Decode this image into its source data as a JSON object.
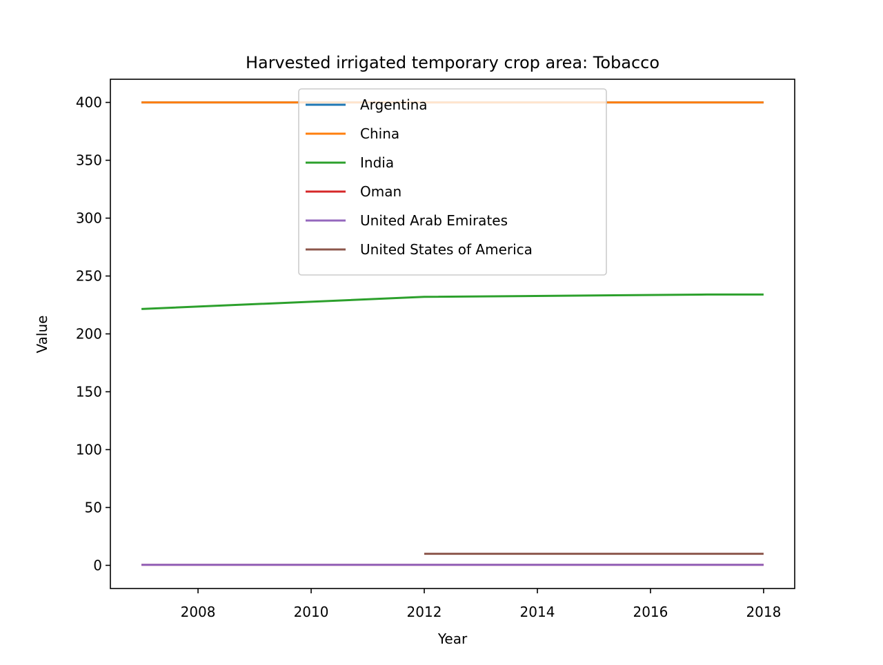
{
  "chart_data": {
    "type": "line",
    "title": "Harvested irrigated temporary crop area: Tobacco",
    "xlabel": "Year",
    "ylabel": "Value",
    "xlim": [
      2006.45,
      2018.55
    ],
    "ylim": [
      -20,
      420
    ],
    "xticks": [
      2008,
      2010,
      2012,
      2014,
      2016,
      2018
    ],
    "yticks": [
      0,
      50,
      100,
      150,
      200,
      250,
      300,
      350,
      400
    ],
    "grid": false,
    "legend_position": "upper center",
    "series": [
      {
        "name": "Argentina",
        "color": "#1f77b4",
        "x": [
          2007,
          2012,
          2017,
          2018
        ],
        "y": [
          400,
          400,
          400,
          400
        ]
      },
      {
        "name": "China",
        "color": "#ff7f0e",
        "x": [
          2007,
          2012,
          2017,
          2018
        ],
        "y": [
          400,
          400,
          400,
          400
        ]
      },
      {
        "name": "India",
        "color": "#2ca02c",
        "x": [
          2007,
          2012,
          2017,
          2018
        ],
        "y": [
          221.5,
          232,
          234,
          234
        ]
      },
      {
        "name": "Oman",
        "color": "#d62728",
        "x": [
          2007,
          2012,
          2017,
          2018
        ],
        "y": [
          0.5,
          0.5,
          0.5,
          0.5
        ]
      },
      {
        "name": "United Arab Emirates",
        "color": "#9467bd",
        "x": [
          2007,
          2012,
          2017,
          2018
        ],
        "y": [
          0.5,
          0.5,
          0.5,
          0.5
        ]
      },
      {
        "name": "United States of America",
        "color": "#8c564b",
        "x": [
          2012,
          2017,
          2018
        ],
        "y": [
          10,
          10,
          10
        ]
      }
    ]
  }
}
